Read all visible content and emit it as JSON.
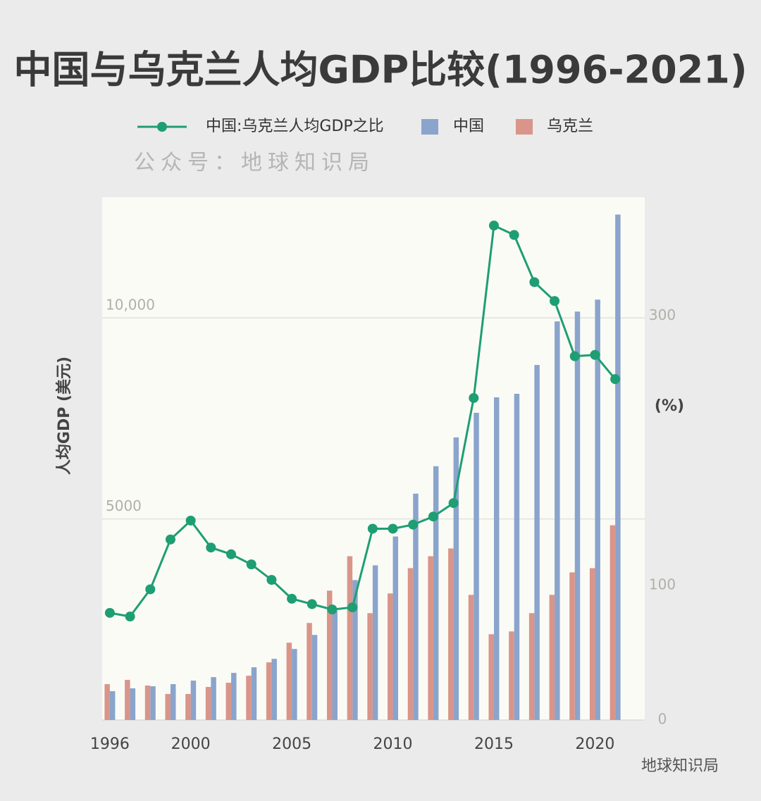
{
  "chart_data": {
    "type": "bar",
    "title": "中国与乌克兰人均GDP比较(1996-2021)",
    "subtitle": "公众号：地球知识局",
    "footer": "地球知识局",
    "y_label": "人均GDP (美元)",
    "y2_label": "(%)",
    "x": [
      1996,
      1997,
      1998,
      1999,
      2000,
      2001,
      2002,
      2003,
      2004,
      2005,
      2006,
      2007,
      2008,
      2009,
      2010,
      2011,
      2012,
      2013,
      2014,
      2015,
      2016,
      2017,
      2018,
      2019,
      2020,
      2021
    ],
    "series": [
      {
        "name": "中国:乌克兰人均GDP之比",
        "type": "line",
        "axis": "y2",
        "color": "#1e9e73",
        "values": [
          79.5,
          76.8,
          97,
          134,
          148,
          128,
          123,
          115.5,
          104,
          90,
          86,
          82,
          83.6,
          142,
          142,
          145,
          151,
          161,
          239,
          367,
          360,
          325,
          311,
          270,
          271,
          253
        ]
      },
      {
        "name": "中国",
        "color": "#8aa4cc",
        "values": [
          717,
          787,
          839,
          892,
          979,
          1066,
          1171,
          1311,
          1521,
          1766,
          2115,
          2710,
          3479,
          3846,
          4563,
          5629,
          6311,
          7028,
          7640,
          8024,
          8112,
          8829,
          9913,
          10157,
          10455,
          12570
        ]
      },
      {
        "name": "乌克兰",
        "color": "#d9958a",
        "values": [
          892,
          997,
          857,
          647,
          647,
          822,
          927,
          1101,
          1434,
          1923,
          2413,
          3217,
          4073,
          2657,
          3147,
          3776,
          4073,
          4266,
          3112,
          2133,
          2203,
          2657,
          3112,
          3671,
          3776,
          4843
        ]
      }
    ],
    "xlim": [
      1995.62,
      2022.46
    ],
    "xticks": [
      1996,
      2000,
      2005,
      2010,
      2015,
      2020
    ],
    "ylim": [
      0,
      13000
    ],
    "yticks": [
      5000,
      {
        "value": 10000,
        "label": "10,000"
      }
    ],
    "y2lim": [
      0,
      388
    ],
    "y2ticks": [
      0,
      100,
      300
    ],
    "grid": true
  }
}
